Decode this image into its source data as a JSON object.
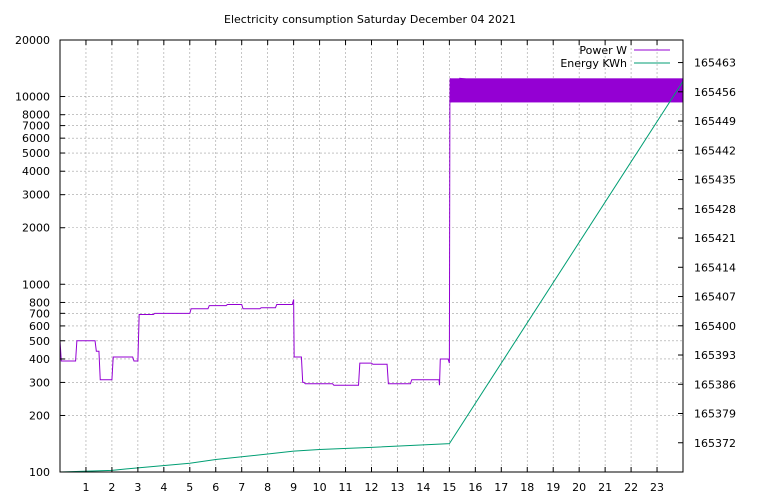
{
  "chart_data": {
    "type": "line",
    "title": "Electricity consumption Saturday December 04 2021",
    "x_axis": {
      "range": [
        0,
        24
      ],
      "ticks": [
        1,
        2,
        3,
        4,
        5,
        6,
        7,
        8,
        9,
        10,
        11,
        12,
        13,
        14,
        15,
        16,
        17,
        18,
        19,
        20,
        21,
        22,
        23
      ],
      "grid": true
    },
    "y_axis_left": {
      "scale": "log",
      "range": [
        100,
        20000
      ],
      "ticks": [
        100,
        200,
        300,
        400,
        500,
        600,
        700,
        800,
        1000,
        2000,
        3000,
        4000,
        5000,
        6000,
        7000,
        8000,
        10000,
        20000
      ],
      "grid": true
    },
    "y_axis_right": {
      "scale": "linear",
      "range": [
        165365.0,
        165468.4
      ],
      "ticks": [
        165372,
        165379,
        165386,
        165393,
        165400,
        165407,
        165414,
        165421,
        165428,
        165435,
        165442,
        165449,
        165456,
        165463
      ]
    },
    "legend": {
      "position": "top-right"
    },
    "series": [
      {
        "name": "Power W",
        "axis": "left",
        "color": "#9400d3",
        "points": [
          [
            0.0,
            500
          ],
          [
            0.05,
            390
          ],
          [
            0.6,
            390
          ],
          [
            0.65,
            500
          ],
          [
            1.35,
            500
          ],
          [
            1.4,
            440
          ],
          [
            1.5,
            440
          ],
          [
            1.55,
            310
          ],
          [
            2.0,
            310
          ],
          [
            2.05,
            410
          ],
          [
            2.8,
            410
          ],
          [
            2.85,
            390
          ],
          [
            3.0,
            390
          ],
          [
            3.05,
            690
          ],
          [
            3.6,
            690
          ],
          [
            3.65,
            700
          ],
          [
            5.0,
            700
          ],
          [
            5.05,
            740
          ],
          [
            5.7,
            740
          ],
          [
            5.75,
            770
          ],
          [
            6.4,
            770
          ],
          [
            6.45,
            780
          ],
          [
            7.0,
            780
          ],
          [
            7.05,
            740
          ],
          [
            7.7,
            740
          ],
          [
            7.75,
            750
          ],
          [
            8.3,
            750
          ],
          [
            8.35,
            780
          ],
          [
            8.95,
            780
          ],
          [
            9.0,
            830
          ],
          [
            9.02,
            410
          ],
          [
            9.3,
            410
          ],
          [
            9.35,
            300
          ],
          [
            9.4,
            300
          ],
          [
            9.45,
            295
          ],
          [
            10.5,
            295
          ],
          [
            10.55,
            290
          ],
          [
            11.5,
            290
          ],
          [
            11.55,
            380
          ],
          [
            12.0,
            380
          ],
          [
            12.05,
            375
          ],
          [
            12.6,
            375
          ],
          [
            12.65,
            295
          ],
          [
            13.5,
            295
          ],
          [
            13.55,
            310
          ],
          [
            14.6,
            310
          ],
          [
            14.62,
            290
          ],
          [
            14.65,
            400
          ],
          [
            14.95,
            400
          ],
          [
            15.0,
            380
          ],
          [
            15.02,
            9500
          ],
          [
            15.03,
            12500
          ],
          [
            15.06,
            9300
          ],
          [
            15.1,
            12300
          ],
          [
            15.15,
            9400
          ],
          [
            15.2,
            12400
          ],
          [
            15.3,
            9500
          ],
          [
            15.4,
            12500
          ],
          [
            23.99,
            9400
          ],
          [
            24.0,
            12500
          ]
        ],
        "fill_band": {
          "x": [
            15.02,
            24.0
          ],
          "y": [
            9300,
            12500
          ]
        }
      },
      {
        "name": "Energy KWh",
        "axis": "right",
        "color": "#009e73",
        "points": [
          [
            0.0,
            165365.0
          ],
          [
            2.0,
            165365.4
          ],
          [
            3.0,
            165366.0
          ],
          [
            5.0,
            165367.1
          ],
          [
            6.0,
            165368.0
          ],
          [
            8.0,
            165369.3
          ],
          [
            9.0,
            165370.0
          ],
          [
            10.0,
            165370.4
          ],
          [
            12.0,
            165370.9
          ],
          [
            14.0,
            165371.5
          ],
          [
            15.0,
            165371.8
          ],
          [
            24.0,
            165458.5
          ]
        ]
      }
    ]
  }
}
